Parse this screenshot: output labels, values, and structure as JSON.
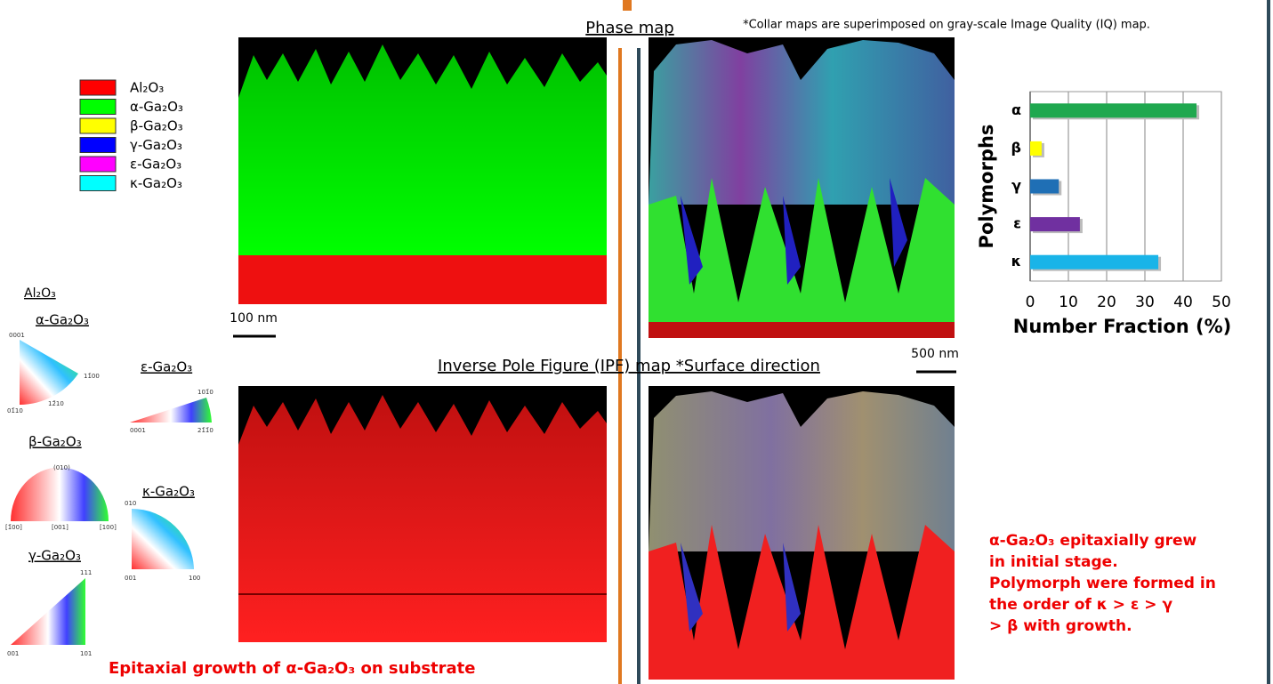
{
  "note": "*Collar maps are superimposed on gray-scale Image Quality (IQ) map.",
  "phase_map_title": "Phase map",
  "ipf_map_title": "Inverse Pole Figure (IPF) map *Surface direction",
  "scale_bars": [
    "100 nm",
    "500 nm"
  ],
  "legend": [
    {
      "label": "Al₂O₃",
      "color": "#ff0000"
    },
    {
      "label": "α-Ga₂O₃",
      "color": "#00ff00"
    },
    {
      "label": "β-Ga₂O₃",
      "color": "#ffff00"
    },
    {
      "label": "γ-Ga₂O₃",
      "color": "#0000ff"
    },
    {
      "label": "ε-Ga₂O₃",
      "color": "#ff00ff"
    },
    {
      "label": "κ-Ga₂O₃",
      "color": "#00ffff"
    }
  ],
  "ipf_keys": {
    "al2o3": "Al₂O₃",
    "alpha": "α-Ga₂O₃",
    "alpha_poles": [
      "0001",
      "11̄00",
      "01̄10",
      "12̄10"
    ],
    "epsilon": "ε-Ga₂O₃",
    "epsilon_poles": [
      "101̄0",
      "0001",
      "21̄1̄0"
    ],
    "beta": "β-Ga₂O₃",
    "beta_poles": [
      "(010)",
      "[1̄00]",
      "[001]",
      "[100]"
    ],
    "kappa": "κ-Ga₂O₃",
    "kappa_poles": [
      "010",
      "001",
      "100"
    ],
    "gamma": "γ-Ga₂O₃",
    "gamma_poles": [
      "111",
      "001",
      "101"
    ]
  },
  "caption_bottom": "Epitaxial growth of α-Ga₂O₃ on substrate",
  "conclusion_lines": [
    "α-Ga₂O₃ epitaxially grew",
    "in initial stage.",
    "Polymorph were formed in",
    "the order of κ > ε > γ",
    "> β with growth."
  ],
  "chart_data": {
    "type": "hbar",
    "categories": [
      "α",
      "β",
      "γ",
      "ε",
      "κ"
    ],
    "values": [
      43.5,
      3,
      7.5,
      13,
      33.5
    ],
    "colors": [
      "#1fa84f",
      "#ffff00",
      "#1f6fb5",
      "#7030a0",
      "#19b4e8"
    ],
    "xlim": [
      0,
      50
    ],
    "xticks": [
      0,
      10,
      20,
      30,
      40,
      50
    ],
    "x_label": "Number Fraction (%)",
    "y_label": "Polymorphs",
    "grid": true
  }
}
